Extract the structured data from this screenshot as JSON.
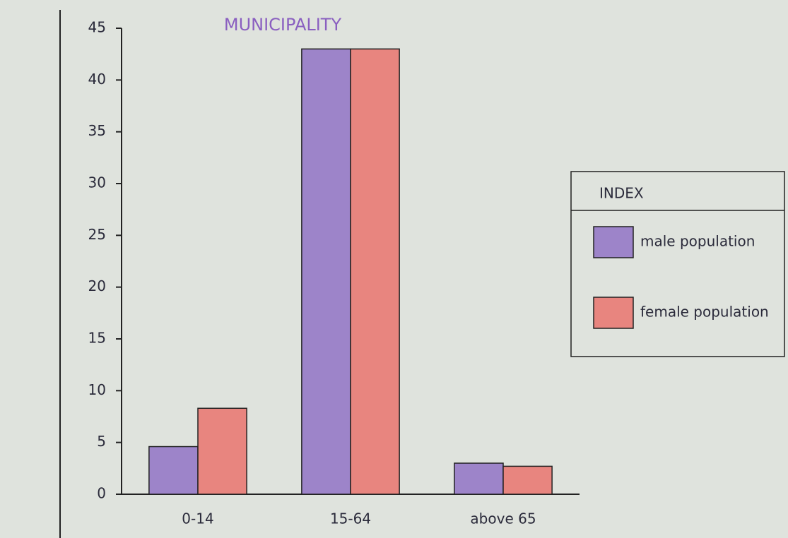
{
  "chart_data": {
    "type": "bar",
    "title": "MUNICIPALITY",
    "categories": [
      "0-14",
      "15-64",
      "above 65"
    ],
    "series": [
      {
        "name": "male population",
        "color": "#9d84c9",
        "values": [
          4.6,
          43,
          3.0
        ]
      },
      {
        "name": "female population",
        "color": "#e8857f",
        "values": [
          8.3,
          43,
          2.7
        ]
      }
    ],
    "legend_title": "INDEX",
    "legend_position": "right",
    "ylim": [
      0,
      45
    ],
    "yticks": [
      0,
      5,
      10,
      15,
      20,
      25,
      30,
      35,
      40,
      45
    ],
    "grid": false
  }
}
